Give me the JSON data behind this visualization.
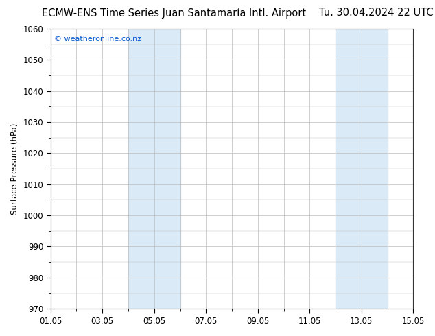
{
  "title_left": "ECMW-ENS Time Series Juan Santamaría Intl. Airport",
  "title_right": "Tu. 30.04.2024 22 UTC",
  "ylabel": "Surface Pressure (hPa)",
  "watermark": "© weatheronline.co.nz",
  "ylim": [
    970,
    1060
  ],
  "yticks": [
    970,
    980,
    990,
    1000,
    1010,
    1020,
    1030,
    1040,
    1050,
    1060
  ],
  "xtick_labels": [
    "01.05",
    "03.05",
    "05.05",
    "07.05",
    "09.05",
    "11.05",
    "13.05",
    "15.05"
  ],
  "xtick_positions": [
    0,
    2,
    4,
    6,
    8,
    10,
    12,
    14
  ],
  "xmin": 0,
  "xmax": 14,
  "shaded_regions": [
    {
      "xmin": 3.0,
      "xmax": 5.0,
      "color": "#daeaf7"
    },
    {
      "xmin": 11.0,
      "xmax": 13.0,
      "color": "#daeaf7"
    }
  ],
  "background_color": "#ffffff",
  "plot_bg_color": "#ffffff",
  "grid_color": "#bbbbbb",
  "title_fontsize": 10.5,
  "tick_fontsize": 8.5,
  "ylabel_fontsize": 8.5,
  "watermark_color": "#0055cc",
  "watermark_fontsize": 8
}
